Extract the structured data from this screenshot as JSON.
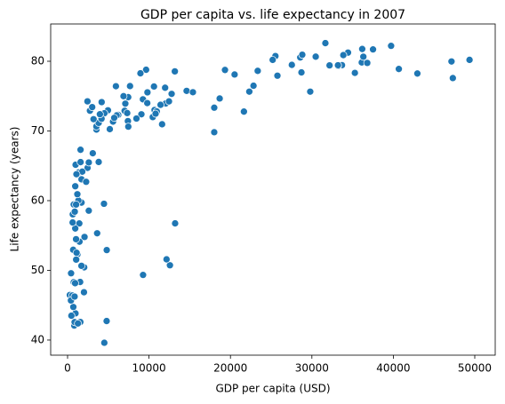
{
  "chart_data": {
    "type": "scatter",
    "title": "GDP per capita vs. life expectancy in 2007",
    "x_label": "GDP per capita (USD)",
    "y_label": "Life expectancy (years)",
    "color": "#1f77b4",
    "xlim": [
      -2074,
      52511
    ],
    "ylim": [
      37.83,
      85.35
    ],
    "xticks": [
      0,
      10000,
      20000,
      30000,
      40000,
      50000
    ],
    "yticks": [
      40,
      50,
      60,
      70,
      80
    ],
    "x": [
      975,
      5937,
      6223,
      4797,
      12779,
      34435,
      36126,
      29796,
      1391,
      33693,
      1441,
      3822,
      7446,
      12570,
      9066,
      10681,
      1217,
      430,
      1714,
      2042,
      36319,
      706,
      1704,
      13172,
      4959,
      7007,
      986,
      278,
      3633,
      9645,
      1545,
      14619,
      8948,
      22833,
      35278,
      2082,
      6025,
      6873,
      5581,
      5728,
      12154,
      641,
      691,
      33207,
      30470,
      13206,
      753,
      32170,
      1328,
      27538,
      5186,
      943,
      579,
      1202,
      3548,
      39725,
      18009,
      36181,
      2452,
      3541,
      11606,
      4471,
      40676,
      25523,
      28570,
      7321,
      31656,
      4519,
      1463,
      1593,
      23348,
      47307,
      10461,
      1569,
      415,
      12058,
      1045,
      759,
      12452,
      1043,
      1803,
      10957,
      11978,
      3096,
      9254,
      3820,
      824,
      944,
      4811,
      1091,
      36798,
      25185,
      2749,
      620,
      2014,
      49357,
      22316,
      2606,
      9809,
      4173,
      7409,
      3190,
      15390,
      20510,
      19329,
      7670,
      10808,
      863,
      1598,
      21655,
      1712,
      9787,
      863,
      47143,
      18678,
      25768,
      926,
      9270,
      28821,
      3970,
      2602,
      4513,
      33860,
      37506,
      4185,
      28718,
      1107,
      7458,
      883,
      18009,
      7093,
      8458,
      1056,
      33203,
      42952,
      10611,
      11416,
      2442,
      3025,
      2281,
      1271,
      470
    ],
    "values": [
      43.83,
      76.42,
      72.3,
      42.73,
      75.32,
      81.24,
      79.83,
      75.64,
      64.06,
      79.44,
      56.73,
      65.55,
      74.85,
      50.73,
      72.39,
      73.01,
      52.3,
      49.58,
      59.72,
      50.43,
      80.65,
      44.74,
      50.65,
      78.55,
      72.96,
      72.89,
      65.15,
      46.46,
      55.32,
      78.78,
      48.33,
      75.75,
      78.27,
      76.49,
      78.33,
      54.79,
      72.24,
      74.99,
      71.34,
      71.88,
      51.58,
      58.04,
      52.95,
      79.31,
      80.66,
      56.74,
      59.45,
      79.41,
      60.02,
      79.48,
      70.26,
      56.01,
      46.39,
      60.92,
      70.2,
      82.21,
      73.34,
      81.76,
      64.7,
      70.65,
      70.96,
      59.55,
      78.89,
      80.75,
      80.55,
      72.57,
      82.6,
      72.54,
      54.11,
      67.3,
      78.62,
      77.59,
      71.99,
      42.59,
      45.68,
      73.95,
      59.44,
      48.3,
      74.24,
      54.47,
      64.16,
      72.8,
      76.2,
      66.8,
      74.54,
      71.16,
      42.08,
      62.07,
      52.91,
      63.79,
      79.76,
      80.2,
      72.9,
      56.87,
      46.86,
      80.2,
      75.64,
      65.48,
      75.54,
      71.75,
      71.42,
      71.69,
      75.56,
      78.1,
      78.75,
      76.44,
      72.48,
      46.24,
      65.53,
      72.78,
      63.06,
      74.0,
      42.57,
      79.97,
      74.66,
      77.93,
      48.16,
      49.34,
      80.94,
      72.4,
      58.56,
      39.61,
      80.88,
      81.7,
      74.14,
      78.4,
      52.52,
      70.62,
      58.42,
      69.82,
      73.92,
      71.78,
      51.54,
      79.43,
      78.24,
      76.38,
      73.75,
      74.25,
      73.42,
      62.7,
      42.38,
      43.49
    ]
  }
}
